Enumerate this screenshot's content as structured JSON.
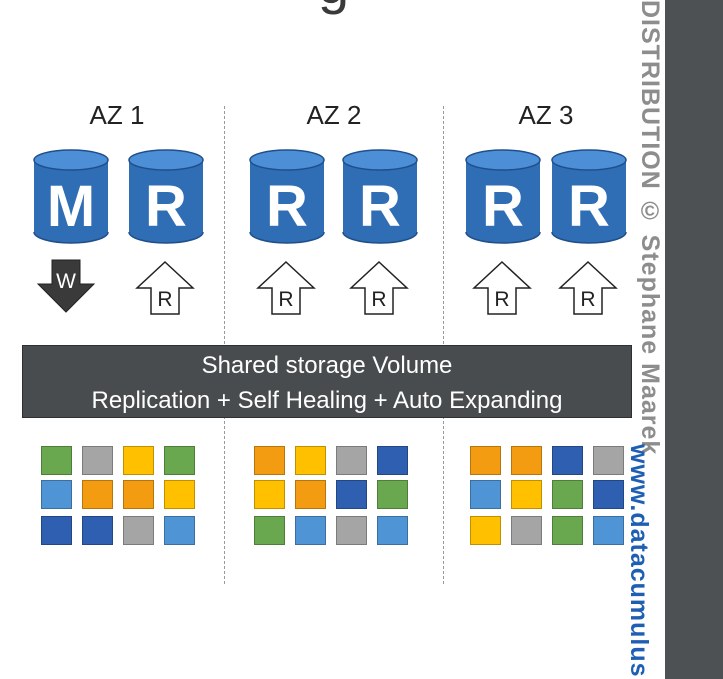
{
  "title_fragment": "g",
  "availability_zones": [
    "AZ 1",
    "AZ 2",
    "AZ 3"
  ],
  "instances": [
    {
      "letter": "M",
      "op": "W",
      "op_dir": "down"
    },
    {
      "letter": "R",
      "op": "R",
      "op_dir": "up"
    },
    {
      "letter": "R",
      "op": "R",
      "op_dir": "up"
    },
    {
      "letter": "R",
      "op": "R",
      "op_dir": "up"
    },
    {
      "letter": "R",
      "op": "R",
      "op_dir": "up"
    },
    {
      "letter": "R",
      "op": "R",
      "op_dir": "up"
    }
  ],
  "banner": {
    "line1": "Shared storage Volume",
    "line2": "Replication + Self Healing + Auto Expanding"
  },
  "storage_blocks": [
    [
      [
        "green",
        "gray",
        "yellow",
        "green"
      ],
      [
        "lightblue",
        "orange",
        "orange",
        "yellow"
      ],
      [
        "blue",
        "blue",
        "gray",
        "lightblue"
      ]
    ],
    [
      [
        "orange",
        "yellow",
        "gray",
        "blue"
      ],
      [
        "yellow",
        "orange",
        "blue",
        "green"
      ],
      [
        "green",
        "lightblue",
        "gray",
        "lightblue"
      ]
    ],
    [
      [
        "orange",
        "orange",
        "blue",
        "gray"
      ],
      [
        "lightblue",
        "yellow",
        "green",
        "blue"
      ],
      [
        "yellow",
        "gray",
        "green",
        "lightblue"
      ]
    ]
  ],
  "colors": {
    "green": "#6aa84f",
    "gray": "#a5a5a5",
    "yellow": "#ffc000",
    "orange": "#f39c12",
    "lightblue": "#4f94d4",
    "blue": "#2f5fb0",
    "cylinder": "#2f6db5",
    "banner": "#484c4e",
    "sidebar": "#4d5154"
  },
  "watermark": {
    "copyright": "DISTRIBUTION © Stephane Maarek",
    "url": "www.datacumulus"
  }
}
